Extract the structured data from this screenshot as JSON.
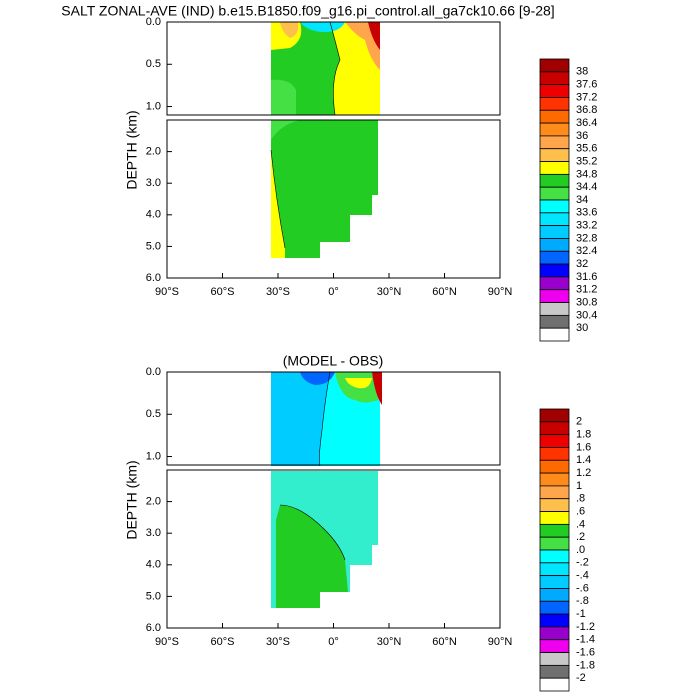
{
  "chart_data": [
    {
      "type": "contour",
      "title": "SALT ZONAL-AVE (IND) b.e15.B1850.f09_g16.pi_control.all_ga7ck10.66 [9-28]",
      "ylabel": "DEPTH (km)",
      "xlim": [
        -90,
        90
      ],
      "xticks": [
        {
          "value": -90,
          "label": "90°S"
        },
        {
          "value": -60,
          "label": "60°S"
        },
        {
          "value": -30,
          "label": "30°S"
        },
        {
          "value": 0,
          "label": "0°"
        },
        {
          "value": 30,
          "label": "30°N"
        },
        {
          "value": 60,
          "label": "60°N"
        },
        {
          "value": 90,
          "label": "90°N"
        }
      ],
      "panels": [
        {
          "ylim": [
            0,
            1.1
          ],
          "yticks": [
            {
              "value": 0,
              "label": "0.0"
            },
            {
              "value": 0.5,
              "label": "0.5"
            },
            {
              "value": 1,
              "label": "1.0"
            }
          ]
        },
        {
          "ylim": [
            1,
            6
          ],
          "yticks": [
            {
              "value": 2,
              "label": "2.0"
            },
            {
              "value": 3,
              "label": "3.0"
            },
            {
              "value": 4,
              "label": "4.0"
            },
            {
              "value": 5,
              "label": "5.0"
            },
            {
              "value": 6,
              "label": "6.0"
            }
          ]
        }
      ],
      "colorbar": {
        "colors": [
          "#a00000",
          "#c80000",
          "#ee0000",
          "#ff3300",
          "#ff6a00",
          "#ff8c1a",
          "#ffa64d",
          "#ffbf4d",
          "#ffff00",
          "#22cc22",
          "#44e044",
          "#00ffff",
          "#00e6ff",
          "#00ccff",
          "#00aaff",
          "#0066ff",
          "#0000ff",
          "#9900cc",
          "#ee00ee",
          "#c8c8c8",
          "#707070",
          "#ffffff"
        ],
        "ticks": [
          38,
          37.6,
          37.2,
          36.8,
          36.4,
          36,
          35.6,
          35.2,
          34.8,
          34.4,
          34,
          33.6,
          33.2,
          32.8,
          32.4,
          32,
          31.6,
          31.2,
          30.8,
          30.4,
          30
        ]
      }
    },
    {
      "type": "contour",
      "title": "(MODEL - OBS)",
      "ylabel": "DEPTH (km)",
      "xlim": [
        -90,
        90
      ],
      "xticks": [
        {
          "value": -90,
          "label": "90°S"
        },
        {
          "value": -60,
          "label": "60°S"
        },
        {
          "value": -30,
          "label": "30°S"
        },
        {
          "value": 0,
          "label": "0°"
        },
        {
          "value": 30,
          "label": "30°N"
        },
        {
          "value": 60,
          "label": "60°N"
        },
        {
          "value": 90,
          "label": "90°N"
        }
      ],
      "panels": [
        {
          "ylim": [
            0,
            1.1
          ],
          "yticks": [
            {
              "value": 0,
              "label": "0.0"
            },
            {
              "value": 0.5,
              "label": "0.5"
            },
            {
              "value": 1,
              "label": "1.0"
            }
          ]
        },
        {
          "ylim": [
            1,
            6
          ],
          "yticks": [
            {
              "value": 2,
              "label": "2.0"
            },
            {
              "value": 3,
              "label": "3.0"
            },
            {
              "value": 4,
              "label": "4.0"
            },
            {
              "value": 5,
              "label": "5.0"
            },
            {
              "value": 6,
              "label": "6.0"
            }
          ]
        }
      ],
      "colorbar": {
        "colors": [
          "#a00000",
          "#c80000",
          "#ee0000",
          "#ff3300",
          "#ff6a00",
          "#ff8c1a",
          "#ffa64d",
          "#ffbf4d",
          "#ffff00",
          "#22cc22",
          "#44e044",
          "#00ffff",
          "#00e6ff",
          "#00ccff",
          "#00aaff",
          "#0066ff",
          "#0000ff",
          "#9900cc",
          "#ee00ee",
          "#c8c8c8",
          "#707070",
          "#ffffff"
        ],
        "ticks": [
          2,
          1.8,
          1.6,
          1.4,
          1.2,
          1,
          {
            "value": 0.8,
            "label": ".8"
          },
          {
            "value": 0.6,
            "label": ".6"
          },
          {
            "value": 0.4,
            "label": ".4"
          },
          {
            "value": 0.2,
            "label": ".2"
          },
          {
            "value": 0,
            "label": ".0"
          },
          {
            "value": -0.2,
            "label": "-.2"
          },
          {
            "value": -0.4,
            "label": "-.4"
          },
          {
            "value": -0.6,
            "label": "-.6"
          },
          {
            "value": -0.8,
            "label": "-.8"
          },
          -1,
          -1.2,
          -1.4,
          -1.6,
          -1.8,
          -2
        ]
      }
    }
  ]
}
